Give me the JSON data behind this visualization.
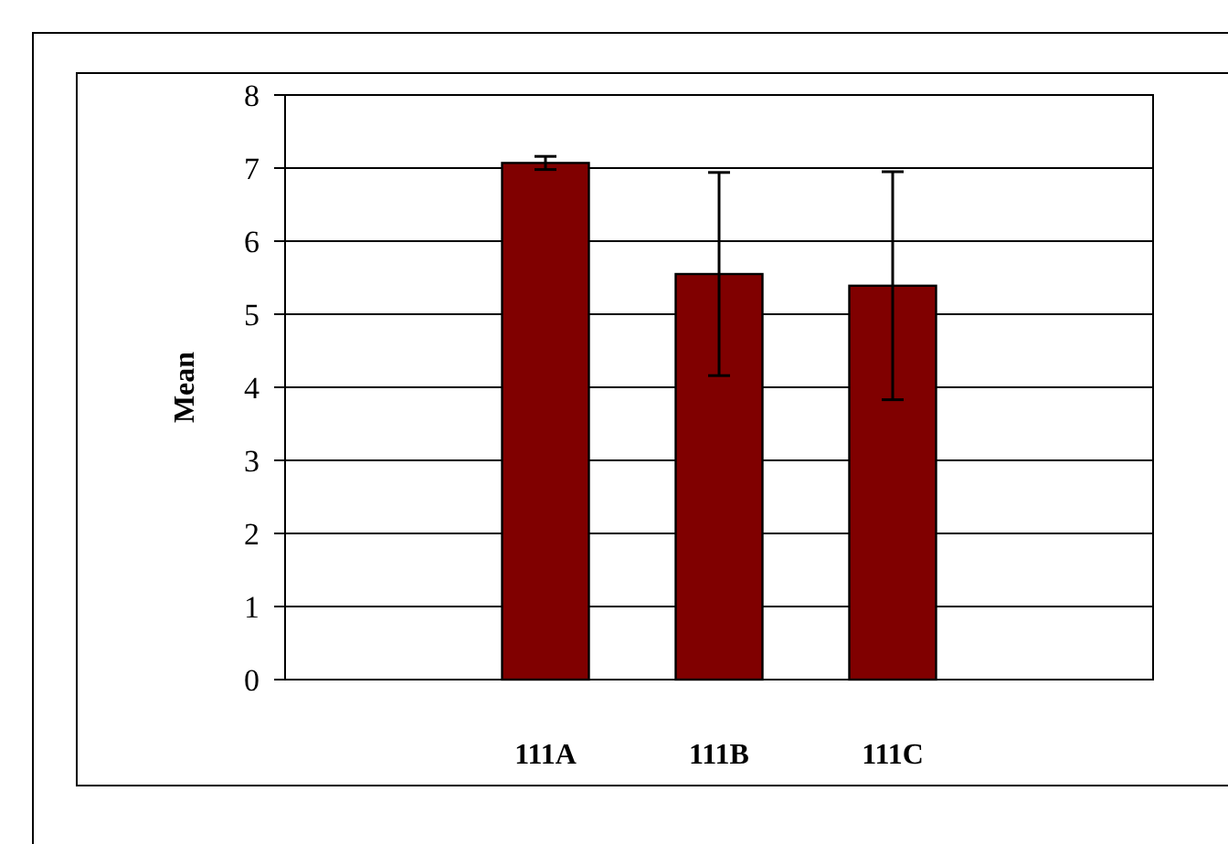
{
  "chart_data": {
    "type": "bar",
    "ylabel": "Mean",
    "categories": [
      null,
      "111A",
      "111B",
      "111C",
      null
    ],
    "values": [
      null,
      7.07,
      5.55,
      5.39,
      null
    ],
    "errors": [
      null,
      0.09,
      1.39,
      1.56,
      null
    ],
    "color": "#800000",
    "ylim": [
      0,
      8
    ],
    "yticks": [
      0,
      1,
      2,
      3,
      4,
      5,
      6,
      7,
      8
    ],
    "grid": "y"
  }
}
